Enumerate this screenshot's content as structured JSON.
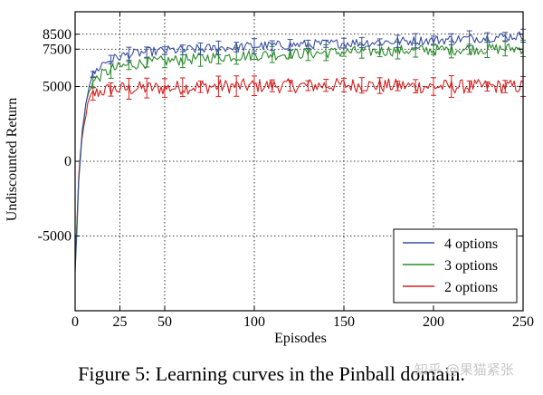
{
  "chart_data": {
    "type": "line",
    "title": "",
    "xlabel": "Episodes",
    "ylabel": "Undiscounted Return",
    "xlim": [
      0,
      250
    ],
    "ylim": [
      -10000,
      10000
    ],
    "xticks": [
      0,
      25,
      50,
      100,
      150,
      200,
      250
    ],
    "yticks": [
      -5000,
      0,
      5000,
      7500,
      8500
    ],
    "grid": true,
    "legend_position": "bottom-right",
    "series": [
      {
        "name": "4 options",
        "color": "#3a4fa0",
        "x": [
          0,
          2,
          4,
          6,
          8,
          10,
          15,
          20,
          25,
          30,
          40,
          50,
          60,
          75,
          100,
          125,
          150,
          175,
          200,
          225,
          250
        ],
        "values": [
          -7500,
          -1500,
          2000,
          4000,
          5200,
          5800,
          6500,
          6800,
          7000,
          7150,
          7300,
          7400,
          7450,
          7550,
          7700,
          7800,
          7900,
          8000,
          8100,
          8250,
          8400
        ],
        "noise": 320
      },
      {
        "name": "3 options",
        "color": "#2a8a2a",
        "x": [
          0,
          2,
          4,
          6,
          8,
          10,
          15,
          20,
          25,
          30,
          40,
          50,
          60,
          75,
          100,
          125,
          150,
          175,
          200,
          225,
          250
        ],
        "values": [
          -7200,
          -1200,
          1800,
          3800,
          4800,
          5300,
          5800,
          6100,
          6300,
          6450,
          6600,
          6700,
          6800,
          6950,
          7100,
          7200,
          7300,
          7400,
          7450,
          7500,
          7550
        ],
        "noise": 380
      },
      {
        "name": "2 options",
        "color": "#d42020",
        "x": [
          0,
          2,
          4,
          6,
          8,
          10,
          15,
          20,
          25,
          30,
          40,
          50,
          60,
          75,
          100,
          125,
          150,
          175,
          200,
          225,
          250
        ],
        "values": [
          -7000,
          -1000,
          1500,
          3200,
          4100,
          4500,
          4700,
          4800,
          4850,
          4850,
          4900,
          4900,
          4950,
          5000,
          5050,
          5050,
          5100,
          5050,
          5000,
          5000,
          5000
        ],
        "noise": 480
      }
    ],
    "caption": "Figure 5: Learning curves in the Pinball domain."
  },
  "watermark": "知乎 @果猫紧张"
}
